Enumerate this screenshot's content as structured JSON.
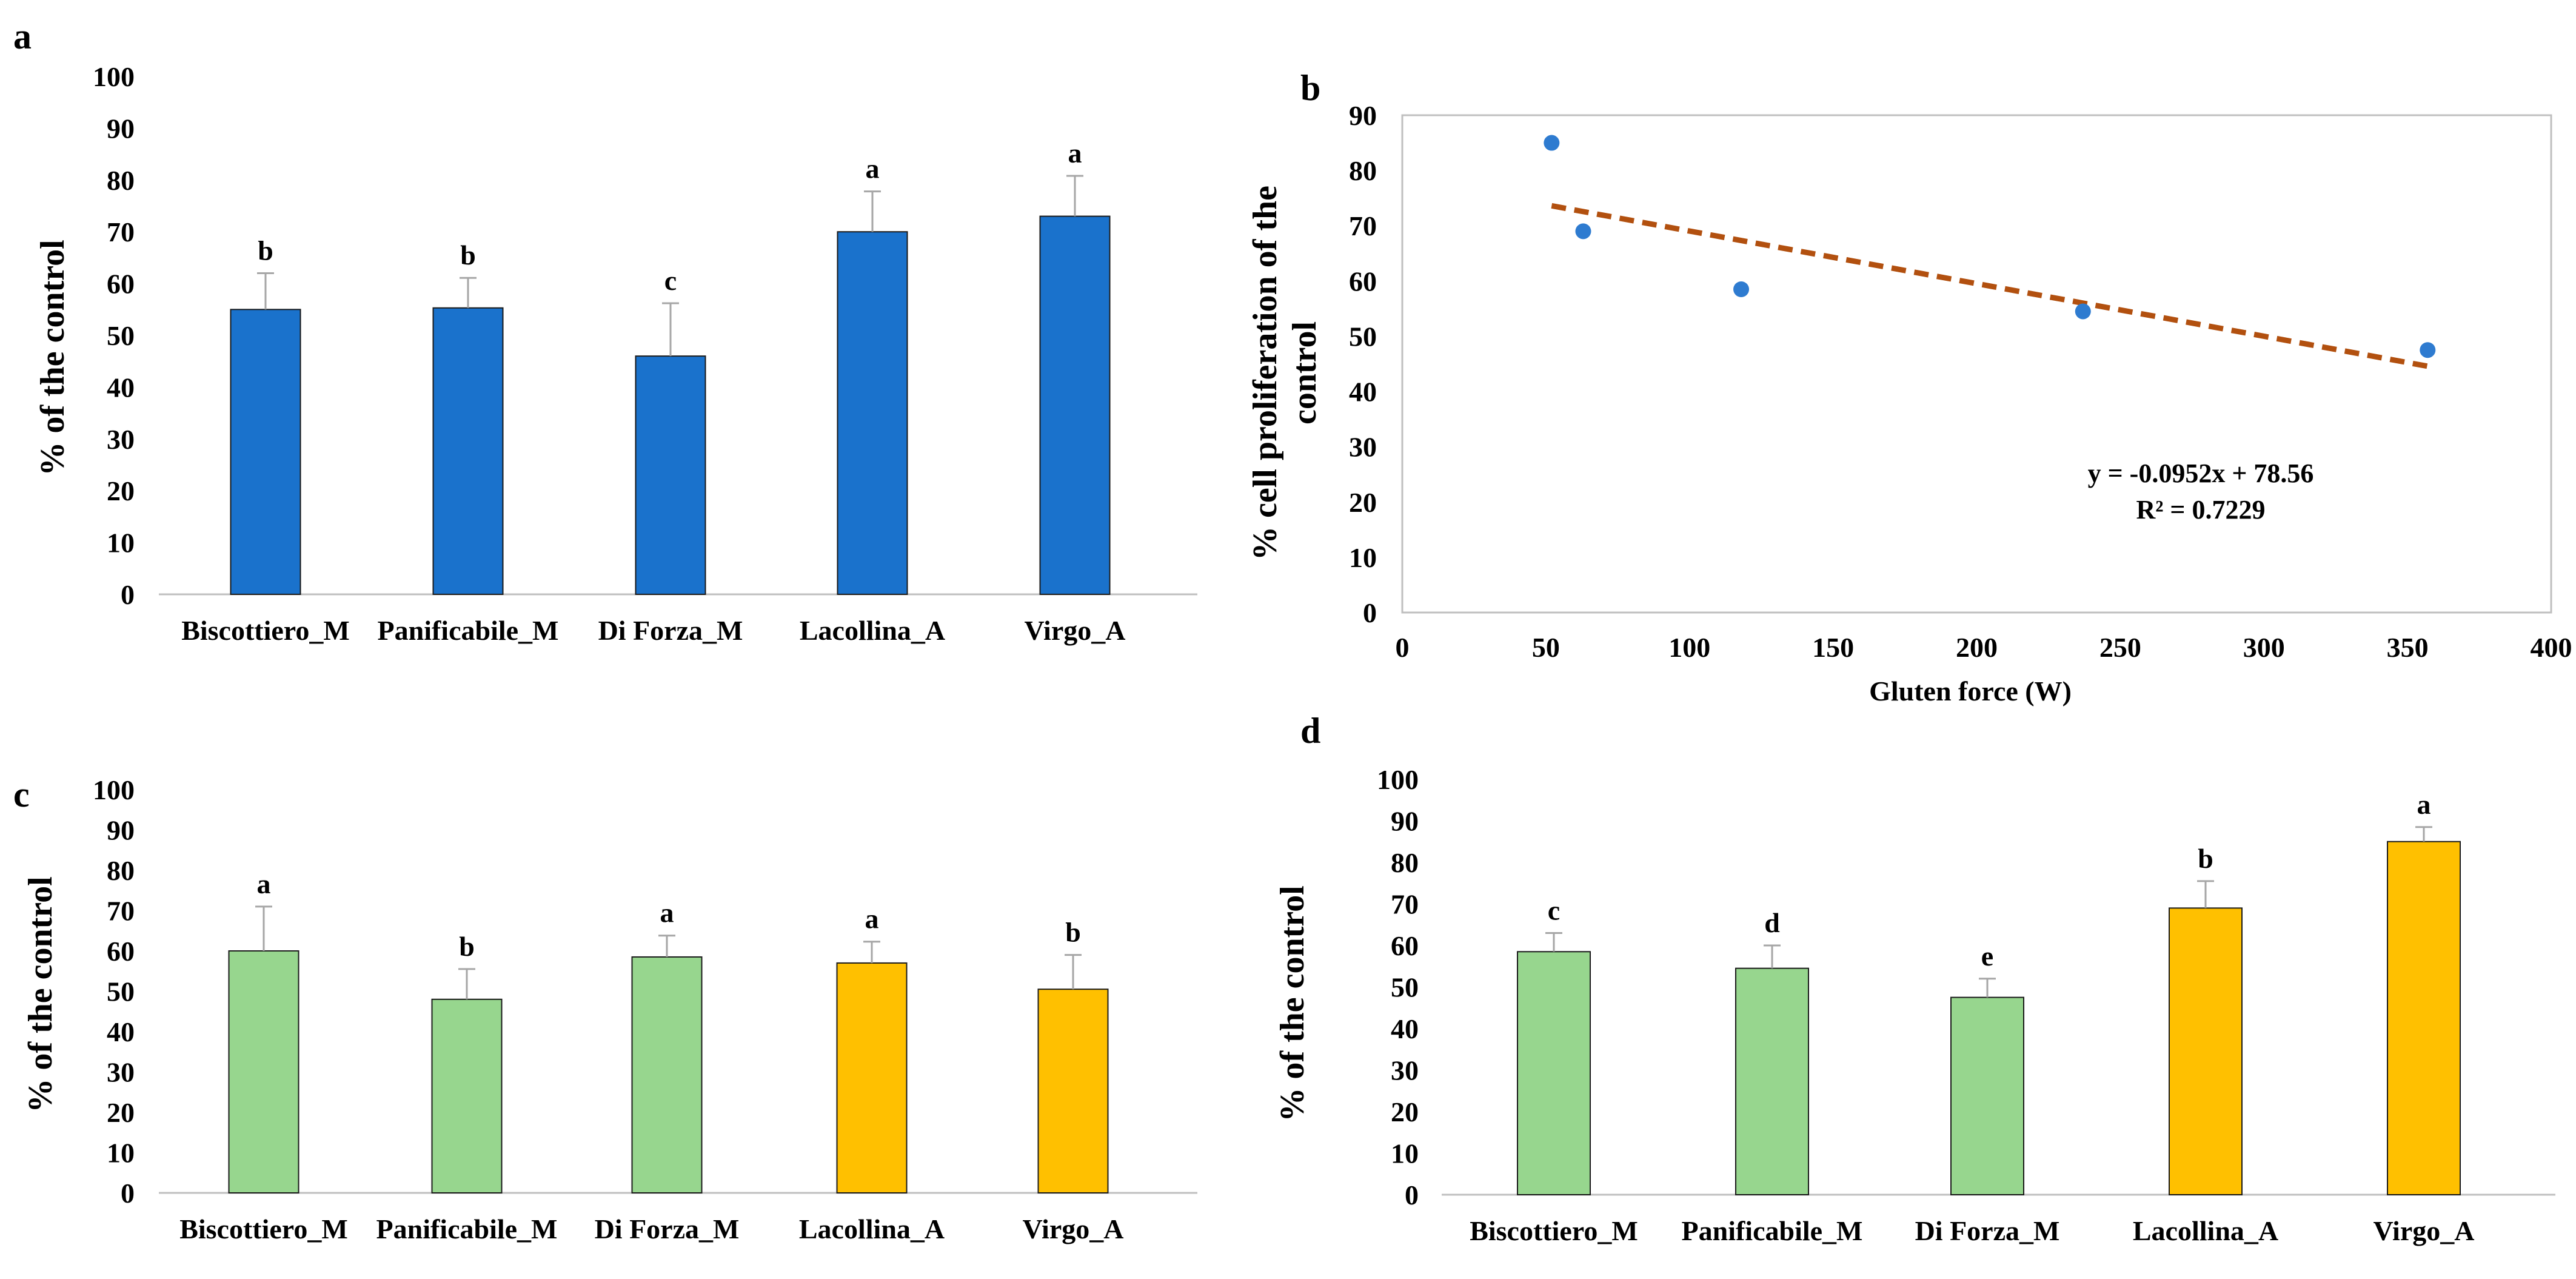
{
  "colors": {
    "blue": "#1a72cc",
    "green": "#97d68e",
    "yellow": "#ffc000",
    "point": "#2e7bd0",
    "trend": "#b2500f",
    "error": "#a6a6a6",
    "axis": "#bfbfbf"
  },
  "chart_data": [
    {
      "id": "a",
      "panel_label": "a",
      "type": "bar",
      "title": "",
      "xlabel": "",
      "ylabel": "% of the control",
      "ylim": [
        0,
        100
      ],
      "yticks": [
        "0",
        "10",
        "20",
        "30",
        "40",
        "50",
        "60",
        "70",
        "80",
        "90",
        "100"
      ],
      "categories": [
        "Biscottiero_M",
        "Panificabile_M",
        "Di Forza_M",
        "Lacollina_A",
        "Virgo_A"
      ],
      "values": [
        55,
        55.3,
        46,
        70,
        73
      ],
      "errors": [
        7,
        5.8,
        10.2,
        7.8,
        7.8
      ],
      "letters": [
        "b",
        "b",
        "c",
        "a",
        "a"
      ],
      "bar_colors": [
        "blue",
        "blue",
        "blue",
        "blue",
        "blue"
      ]
    },
    {
      "id": "b",
      "panel_label": "b",
      "type": "scatter",
      "title": "",
      "xlabel": "Gluten force (W)",
      "ylabel_lines": [
        "% cell proliferation of the",
        "control"
      ],
      "xlim": [
        0,
        400
      ],
      "ylim": [
        0,
        90
      ],
      "xticks": [
        "0",
        "50",
        "100",
        "150",
        "200",
        "250",
        "300",
        "350",
        "400"
      ],
      "yticks": [
        "0",
        "10",
        "20",
        "30",
        "40",
        "50",
        "60",
        "70",
        "80",
        "90"
      ],
      "points": [
        {
          "x": 52,
          "y": 85
        },
        {
          "x": 63,
          "y": 69
        },
        {
          "x": 118,
          "y": 58.5
        },
        {
          "x": 237,
          "y": 54.5
        },
        {
          "x": 357,
          "y": 47.5
        }
      ],
      "trendline": {
        "slope": -0.0952,
        "intercept": 78.56,
        "x_start": 52,
        "x_end": 357
      },
      "equation": "y = -0.0952x + 78.56",
      "r_squared": "R² = 0.7229"
    },
    {
      "id": "c",
      "panel_label": "c",
      "type": "bar",
      "title": "",
      "xlabel": "",
      "ylabel": "% of  the control",
      "ylim": [
        0,
        100
      ],
      "yticks": [
        "0",
        "10",
        "20",
        "30",
        "40",
        "50",
        "60",
        "70",
        "80",
        "90",
        "100"
      ],
      "categories": [
        "Biscottiero_M",
        "Panificabile_M",
        "Di Forza_M",
        "Lacollina_A",
        "Virgo_A"
      ],
      "values": [
        60,
        48,
        58.5,
        57,
        50.5
      ],
      "errors": [
        11,
        7.5,
        5.3,
        5.3,
        8.5
      ],
      "letters": [
        "a",
        "b",
        "a",
        "a",
        "b"
      ],
      "bar_colors": [
        "green",
        "green",
        "green",
        "yellow",
        "yellow"
      ]
    },
    {
      "id": "d",
      "panel_label": "d",
      "type": "bar",
      "title": "",
      "xlabel": "",
      "ylabel": "% of  the control",
      "ylim": [
        0,
        100
      ],
      "yticks": [
        "0",
        "10",
        "20",
        "30",
        "40",
        "50",
        "60",
        "70",
        "80",
        "90",
        "100"
      ],
      "categories": [
        "Biscottiero_M",
        "Panificabile_M",
        "Di Forza_M",
        "Lacollina_A",
        "Virgo_A"
      ],
      "values": [
        58.5,
        54.5,
        47.5,
        69,
        85
      ],
      "errors": [
        4.5,
        5.5,
        4.5,
        6.5,
        3.5
      ],
      "letters": [
        "c",
        "d",
        "e",
        "b",
        "a"
      ],
      "bar_colors": [
        "green",
        "green",
        "green",
        "yellow",
        "yellow"
      ]
    }
  ]
}
